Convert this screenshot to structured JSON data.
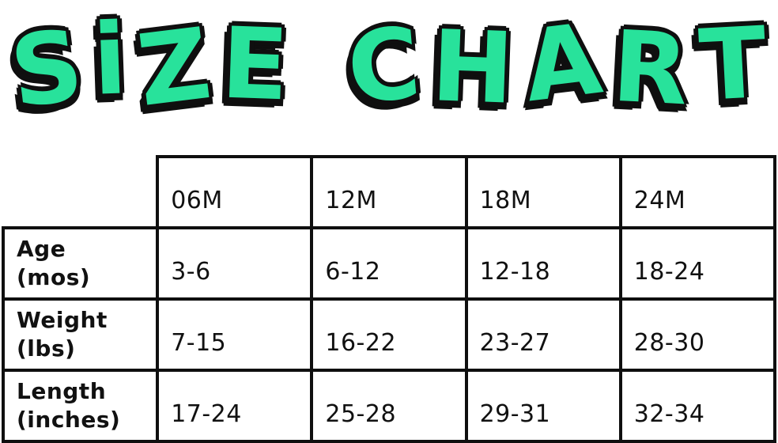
{
  "header": {
    "title": "SiZE CHART"
  },
  "colors": {
    "title_fill": "#28E29B",
    "outline": "#0f0f0f",
    "text": "#111111",
    "background": "#ffffff"
  },
  "chart_data": {
    "type": "table",
    "title": "SIZE CHART",
    "columns": [
      "",
      "06M",
      "12M",
      "18M",
      "24M"
    ],
    "rows": [
      {
        "label": "Age (mos)",
        "values": [
          "3-6",
          "6-12",
          "12-18",
          "18-24"
        ]
      },
      {
        "label": "Weight (lbs)",
        "values": [
          "7-15",
          "16-22",
          "23-27",
          "28-30"
        ]
      },
      {
        "label": "Length (inches)",
        "values": [
          "17-24",
          "25-28",
          "29-31",
          "32-34"
        ]
      }
    ]
  },
  "ui": {
    "row_label_lines": [
      [
        "Age",
        "(mos)"
      ],
      [
        "Weight",
        "(lbs)"
      ],
      [
        "Length",
        "(inches)"
      ]
    ]
  }
}
